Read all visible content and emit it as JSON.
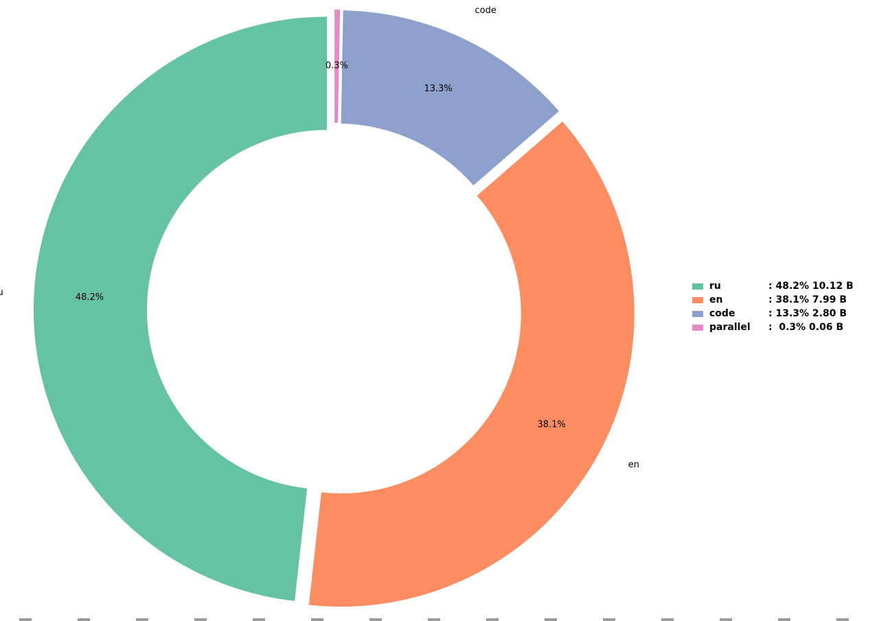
{
  "chart_data": {
    "type": "pie",
    "title": "",
    "donut": true,
    "start_angle": 90,
    "direction": "counterclockwise",
    "legend_position": "right",
    "slices": [
      {
        "label": "ru",
        "percent": 48.2,
        "percent_label": "48.2%",
        "size": "10.12 B",
        "color": "#66c2a5"
      },
      {
        "label": "en",
        "percent": 38.1,
        "percent_label": "38.1%",
        "size": "7.99 B",
        "color": "#fc8d62"
      },
      {
        "label": "code",
        "percent": 13.3,
        "percent_label": "13.3%",
        "size": "2.80 B",
        "color": "#8da0cb"
      },
      {
        "label": "parallel",
        "percent": 0.3,
        "percent_label": "0.3%",
        "size": "0.06 B",
        "color": "#e78ac3"
      }
    ],
    "legend": {
      "entries": [
        {
          "name": "ru",
          "value": ": 48.2% 10.12 B"
        },
        {
          "name": "en",
          "value": ": 38.1% 7.99 B"
        },
        {
          "name": "code",
          "value": ": 13.3% 2.80 B"
        },
        {
          "name": "parallel",
          "value": ":  0.3% 0.06 B"
        }
      ]
    }
  }
}
